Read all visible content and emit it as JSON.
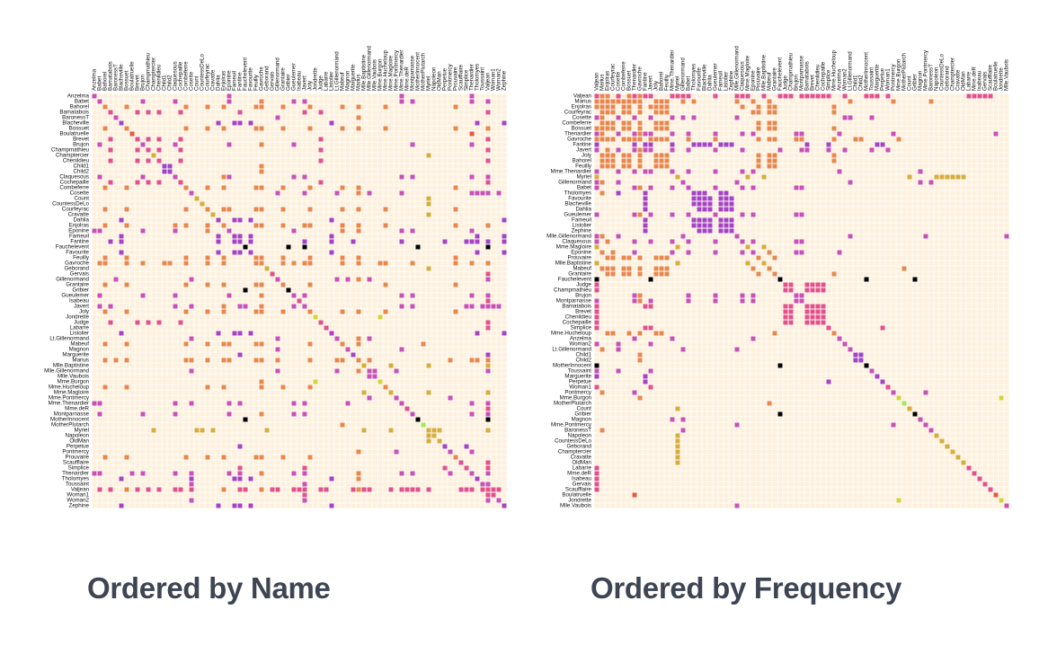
{
  "captions": {
    "left": "Ordered by Name",
    "right": "Ordered by Frequency"
  },
  "colors": {
    "background": "#fdf0dc",
    "grid": "#ffffff",
    "groups": {
      "0": "#000000",
      "1": "#d5ad3d",
      "2": "#e2518a",
      "3": "#a543c3",
      "4": "#c751b5",
      "5": "#c752b4",
      "6": "#e4593b",
      "7": "#d4d43a",
      "8": "#e8874d",
      "9": "#a3e85c",
      "10": "#9e46c2"
    }
  },
  "chart_data": [
    {
      "type": "heatmap",
      "title": "Ordered by Name",
      "rows": [
        "Anzelma",
        "Babet",
        "Bahorel",
        "Bamatabois",
        "BaronessT",
        "Blacheville",
        "Bossuet",
        "Boulatruelle",
        "Brevet",
        "Brujon",
        "Champmathieu",
        "Champtercier",
        "Chenildieu",
        "Child1",
        "Child2",
        "Claquesous",
        "Cochepaille",
        "Combeferre",
        "Cosette",
        "Count",
        "CountessDeLo",
        "Courfeyrac",
        "Cravatte",
        "Dahlia",
        "Enjolras",
        "Eponine",
        "Fameuil",
        "Fantine",
        "Fauchelevent",
        "Favourite",
        "Feuilly",
        "Gavroche",
        "Geborand",
        "Gervais",
        "Gillenormand",
        "Grantaire",
        "Gribier",
        "Gueulemer",
        "Isabeau",
        "Javert",
        "Joly",
        "Jondrette",
        "Judge",
        "Labarre",
        "Listolier",
        "Lt.Gillenormand",
        "Mabeuf",
        "Magnon",
        "Marguerite",
        "Marius",
        "Mlle.Baptistine",
        "Mlle.Gillenormand",
        "Mlle.Vaubois",
        "Mme.Burgon",
        "Mme.Hucheloup",
        "Mme.Magloire",
        "Mme.Pontmercy",
        "Mme.Thenardier",
        "Mme.deR",
        "Montparnasse",
        "MotherInnocent",
        "MotherPlutarch",
        "Myriel",
        "Napoleon",
        "OldMan",
        "Perpetue",
        "Pontmercy",
        "Prouvaire",
        "Scaufflaire",
        "Simplice",
        "Thenardier",
        "Tholomyes",
        "Toussaint",
        "Valjean",
        "Woman1",
        "Woman2",
        "Zephine"
      ]
    },
    {
      "type": "heatmap",
      "title": "Ordered by Frequency",
      "rows": [
        "Valjean",
        "Marius",
        "Enjolras",
        "Courfeyrac",
        "Cosette",
        "Combeferre",
        "Bossuet",
        "Thenardier",
        "Gavroche",
        "Fantine",
        "Javert",
        "Joly",
        "Bahorel",
        "Feuilly",
        "Mme.Thenardier",
        "Myriel",
        "Gillenormand",
        "Babet",
        "Tholomyes",
        "Favourite",
        "Blacheville",
        "Dahlia",
        "Gueulemer",
        "Fameuil",
        "Listolier",
        "Zephine",
        "Mlle.Gillenormand",
        "Claquesous",
        "Mme.Magloire",
        "Eponine",
        "Prouvaire",
        "Mlle.Baptistine",
        "Mabeuf",
        "Grantaire",
        "Fauchelevent",
        "Judge",
        "Champmathieu",
        "Brujon",
        "Montparnasse",
        "Bamatabois",
        "Brevet",
        "Chenildieu",
        "Cochepaille",
        "Simplice",
        "Mme.Hucheloup",
        "Anzelma",
        "Woman2",
        "Lt.Gillenormand",
        "Child1",
        "Child2",
        "MotherInnocent",
        "Toussaint",
        "Marguerite",
        "Perpetue",
        "Woman1",
        "Pontmercy",
        "Mme.Burgon",
        "MotherPlutarch",
        "Count",
        "Gribier",
        "Magnon",
        "Mme.Pontmercy",
        "BaronessT",
        "Napoleon",
        "CountessDeLo",
        "Geborand",
        "Champtercier",
        "Cravatte",
        "OldMan",
        "Labarre",
        "Mme.deR",
        "Isabeau",
        "Gervais",
        "Scaufflaire",
        "Boulatruelle",
        "Jondrette",
        "Mlle.Vaubois"
      ]
    }
  ],
  "groups": {
    "Myriel": 1,
    "Napoleon": 1,
    "Mlle.Baptistine": 1,
    "Mme.Magloire": 1,
    "CountessDeLo": 1,
    "Geborand": 1,
    "Champtercier": 1,
    "Cravatte": 1,
    "Count": 1,
    "OldMan": 1,
    "Labarre": 2,
    "Valjean": 2,
    "Marguerite": 3,
    "Mme.deR": 2,
    "Isabeau": 2,
    "Gervais": 2,
    "Tholomyes": 3,
    "Listolier": 3,
    "Fameuil": 3,
    "Blacheville": 3,
    "Favourite": 3,
    "Dahlia": 3,
    "Zephine": 3,
    "Fantine": 3,
    "Mme.Thenardier": 4,
    "Thenardier": 4,
    "Cosette": 5,
    "Javert": 4,
    "Fauchelevent": 0,
    "Bamatabois": 2,
    "Perpetue": 3,
    "Simplice": 2,
    "Scaufflaire": 2,
    "Woman1": 2,
    "Judge": 2,
    "Champmathieu": 2,
    "Brevet": 2,
    "Chenildieu": 2,
    "Cochepaille": 2,
    "Pontmercy": 4,
    "Boulatruelle": 6,
    "Eponine": 4,
    "Anzelma": 4,
    "Woman2": 5,
    "MotherInnocent": 0,
    "Gribier": 0,
    "Jondrette": 7,
    "Mme.Burgon": 7,
    "Gavroche": 8,
    "Gillenormand": 5,
    "Magnon": 5,
    "Mlle.Gillenormand": 5,
    "Mme.Pontmercy": 5,
    "Mlle.Vaubois": 5,
    "Lt.Gillenormand": 5,
    "Marius": 8,
    "BaronessT": 5,
    "Mabeuf": 8,
    "Enjolras": 8,
    "Combeferre": 8,
    "Prouvaire": 8,
    "Feuilly": 8,
    "Courfeyrac": 8,
    "Bahorel": 8,
    "Bossuet": 8,
    "Joly": 8,
    "Grantaire": 8,
    "MotherPlutarch": 9,
    "Gueulemer": 4,
    "Babet": 4,
    "Claquesous": 4,
    "Montparnasse": 4,
    "Toussaint": 5,
    "Child1": 10,
    "Child2": 10,
    "Brujon": 4,
    "Mme.Hucheloup": 8
  },
  "links": [
    [
      "Napoleon",
      "Myriel"
    ],
    [
      "Mlle.Baptistine",
      "Myriel"
    ],
    [
      "Mme.Magloire",
      "Myriel"
    ],
    [
      "Mme.Magloire",
      "Mlle.Baptistine"
    ],
    [
      "CountessDeLo",
      "Myriel"
    ],
    [
      "Geborand",
      "Myriel"
    ],
    [
      "Champtercier",
      "Myriel"
    ],
    [
      "Cravatte",
      "Myriel"
    ],
    [
      "Count",
      "Myriel"
    ],
    [
      "OldMan",
      "Myriel"
    ],
    [
      "Valjean",
      "Labarre"
    ],
    [
      "Valjean",
      "Mme.Magloire"
    ],
    [
      "Valjean",
      "Mlle.Baptistine"
    ],
    [
      "Valjean",
      "Myriel"
    ],
    [
      "Marguerite",
      "Valjean"
    ],
    [
      "Mme.deR",
      "Valjean"
    ],
    [
      "Isabeau",
      "Valjean"
    ],
    [
      "Gervais",
      "Valjean"
    ],
    [
      "Listolier",
      "Tholomyes"
    ],
    [
      "Fameuil",
      "Tholomyes"
    ],
    [
      "Fameuil",
      "Listolier"
    ],
    [
      "Blacheville",
      "Tholomyes"
    ],
    [
      "Blacheville",
      "Listolier"
    ],
    [
      "Blacheville",
      "Fameuil"
    ],
    [
      "Favourite",
      "Tholomyes"
    ],
    [
      "Favourite",
      "Listolier"
    ],
    [
      "Favourite",
      "Fameuil"
    ],
    [
      "Favourite",
      "Blacheville"
    ],
    [
      "Dahlia",
      "Listolier"
    ],
    [
      "Dahlia",
      "Fameuil"
    ],
    [
      "Dahlia",
      "Blacheville"
    ],
    [
      "Dahlia",
      "Favourite"
    ],
    [
      "Zephine",
      "Listolier"
    ],
    [
      "Zephine",
      "Fameuil"
    ],
    [
      "Zephine",
      "Blacheville"
    ],
    [
      "Zephine",
      "Favourite"
    ],
    [
      "Zephine",
      "Dahlia"
    ],
    [
      "Fantine",
      "Tholomyes"
    ],
    [
      "Fantine",
      "Listolier"
    ],
    [
      "Fantine",
      "Fameuil"
    ],
    [
      "Fantine",
      "Blacheville"
    ],
    [
      "Fantine",
      "Favourite"
    ],
    [
      "Fantine",
      "Dahlia"
    ],
    [
      "Fantine",
      "Zephine"
    ],
    [
      "Fantine",
      "Marguerite"
    ],
    [
      "Fantine",
      "Valjean"
    ],
    [
      "Mme.Thenardier",
      "Fantine"
    ],
    [
      "Mme.Thenardier",
      "Valjean"
    ],
    [
      "Thenardier",
      "Mme.Thenardier"
    ],
    [
      "Thenardier",
      "Fantine"
    ],
    [
      "Thenardier",
      "Valjean"
    ],
    [
      "Cosette",
      "Mme.Thenardier"
    ],
    [
      "Cosette",
      "Valjean"
    ],
    [
      "Cosette",
      "Tholomyes"
    ],
    [
      "Cosette",
      "Thenardier"
    ],
    [
      "Javert",
      "Valjean"
    ],
    [
      "Javert",
      "Fantine"
    ],
    [
      "Javert",
      "Thenardier"
    ],
    [
      "Javert",
      "Mme.Thenardier"
    ],
    [
      "Javert",
      "Cosette"
    ],
    [
      "Fauchelevent",
      "Valjean"
    ],
    [
      "Fauchelevent",
      "Javert"
    ],
    [
      "Bamatabois",
      "Fantine"
    ],
    [
      "Bamatabois",
      "Javert"
    ],
    [
      "Bamatabois",
      "Valjean"
    ],
    [
      "Perpetue",
      "Fantine"
    ],
    [
      "Simplice",
      "Perpetue"
    ],
    [
      "Simplice",
      "Valjean"
    ],
    [
      "Simplice",
      "Fantine"
    ],
    [
      "Simplice",
      "Javert"
    ],
    [
      "Scaufflaire",
      "Valjean"
    ],
    [
      "Woman1",
      "Valjean"
    ],
    [
      "Woman1",
      "Javert"
    ],
    [
      "Judge",
      "Valjean"
    ],
    [
      "Judge",
      "Bamatabois"
    ],
    [
      "Champmathieu",
      "Valjean"
    ],
    [
      "Champmathieu",
      "Judge"
    ],
    [
      "Champmathieu",
      "Bamatabois"
    ],
    [
      "Brevet",
      "Judge"
    ],
    [
      "Brevet",
      "Champmathieu"
    ],
    [
      "Brevet",
      "Valjean"
    ],
    [
      "Brevet",
      "Bamatabois"
    ],
    [
      "Chenildieu",
      "Judge"
    ],
    [
      "Chenildieu",
      "Champmathieu"
    ],
    [
      "Chenildieu",
      "Brevet"
    ],
    [
      "Chenildieu",
      "Valjean"
    ],
    [
      "Chenildieu",
      "Bamatabois"
    ],
    [
      "Cochepaille",
      "Judge"
    ],
    [
      "Cochepaille",
      "Champmathieu"
    ],
    [
      "Cochepaille",
      "Brevet"
    ],
    [
      "Cochepaille",
      "Chenildieu"
    ],
    [
      "Cochepaille",
      "Valjean"
    ],
    [
      "Cochepaille",
      "Bamatabois"
    ],
    [
      "Pontmercy",
      "Thenardier"
    ],
    [
      "Boulatruelle",
      "Thenardier"
    ],
    [
      "Eponine",
      "Mme.Thenardier"
    ],
    [
      "Eponine",
      "Thenardier"
    ],
    [
      "Anzelma",
      "Eponine"
    ],
    [
      "Anzelma",
      "Thenardier"
    ],
    [
      "Anzelma",
      "Mme.Thenardier"
    ],
    [
      "Woman2",
      "Valjean"
    ],
    [
      "Woman2",
      "Cosette"
    ],
    [
      "Woman2",
      "Javert"
    ],
    [
      "MotherInnocent",
      "Fauchelevent"
    ],
    [
      "MotherInnocent",
      "Valjean"
    ],
    [
      "Gribier",
      "Fauchelevent"
    ],
    [
      "Mme.Burgon",
      "Jondrette"
    ],
    [
      "Gavroche",
      "Mme.Burgon"
    ],
    [
      "Gavroche",
      "Thenardier"
    ],
    [
      "Gavroche",
      "Javert"
    ],
    [
      "Gavroche",
      "Valjean"
    ],
    [
      "Gillenormand",
      "Cosette"
    ],
    [
      "Gillenormand",
      "Valjean"
    ],
    [
      "Magnon",
      "Gillenormand"
    ],
    [
      "Magnon",
      "Mme.Thenardier"
    ],
    [
      "Mlle.Gillenormand",
      "Gillenormand"
    ],
    [
      "Mlle.Gillenormand",
      "Cosette"
    ],
    [
      "Mlle.Gillenormand",
      "Valjean"
    ],
    [
      "Mme.Pontmercy",
      "Mlle.Gillenormand"
    ],
    [
      "Mme.Pontmercy",
      "Pontmercy"
    ],
    [
      "Mlle.Vaubois",
      "Mlle.Gillenormand"
    ],
    [
      "Lt.Gillenormand",
      "Mlle.Gillenormand"
    ],
    [
      "Lt.Gillenormand",
      "Gillenormand"
    ],
    [
      "Lt.Gillenormand",
      "Cosette"
    ],
    [
      "Marius",
      "Mlle.Gillenormand"
    ],
    [
      "Marius",
      "Gillenormand"
    ],
    [
      "Marius",
      "Pontmercy"
    ],
    [
      "Marius",
      "Lt.Gillenormand"
    ],
    [
      "Marius",
      "Cosette"
    ],
    [
      "Marius",
      "Valjean"
    ],
    [
      "Marius",
      "Tholomyes"
    ],
    [
      "Marius",
      "Thenardier"
    ],
    [
      "Marius",
      "Eponine"
    ],
    [
      "Marius",
      "Gavroche"
    ],
    [
      "BaronessT",
      "Gillenormand"
    ],
    [
      "BaronessT",
      "Marius"
    ],
    [
      "Mabeuf",
      "Marius"
    ],
    [
      "Mabeuf",
      "Eponine"
    ],
    [
      "Mabeuf",
      "Gavroche"
    ],
    [
      "Enjolras",
      "Marius"
    ],
    [
      "Enjolras",
      "Gavroche"
    ],
    [
      "Enjolras",
      "Javert"
    ],
    [
      "Enjolras",
      "Mabeuf"
    ],
    [
      "Enjolras",
      "Valjean"
    ],
    [
      "Combeferre",
      "Enjolras"
    ],
    [
      "Combeferre",
      "Marius"
    ],
    [
      "Combeferre",
      "Gavroche"
    ],
    [
      "Combeferre",
      "Mabeuf"
    ],
    [
      "Prouvaire",
      "Gavroche"
    ],
    [
      "Prouvaire",
      "Enjolras"
    ],
    [
      "Prouvaire",
      "Combeferre"
    ],
    [
      "Feuilly",
      "Gavroche"
    ],
    [
      "Feuilly",
      "Enjolras"
    ],
    [
      "Feuilly",
      "Prouvaire"
    ],
    [
      "Feuilly",
      "Combeferre"
    ],
    [
      "Feuilly",
      "Mabeuf"
    ],
    [
      "Feuilly",
      "Marius"
    ],
    [
      "Courfeyrac",
      "Marius"
    ],
    [
      "Courfeyrac",
      "Enjolras"
    ],
    [
      "Courfeyrac",
      "Combeferre"
    ],
    [
      "Courfeyrac",
      "Gavroche"
    ],
    [
      "Courfeyrac",
      "Mabeuf"
    ],
    [
      "Courfeyrac",
      "Eponine"
    ],
    [
      "Courfeyrac",
      "Feuilly"
    ],
    [
      "Courfeyrac",
      "Prouvaire"
    ],
    [
      "Bahorel",
      "Combeferre"
    ],
    [
      "Bahorel",
      "Gavroche"
    ],
    [
      "Bahorel",
      "Courfeyrac"
    ],
    [
      "Bahorel",
      "Mabeuf"
    ],
    [
      "Bahorel",
      "Enjolras"
    ],
    [
      "Bahorel",
      "Feuilly"
    ],
    [
      "Bahorel",
      "Prouvaire"
    ],
    [
      "Bahorel",
      "Marius"
    ],
    [
      "Bossuet",
      "Marius"
    ],
    [
      "Bossuet",
      "Courfeyrac"
    ],
    [
      "Bossuet",
      "Gavroche"
    ],
    [
      "Bossuet",
      "Bahorel"
    ],
    [
      "Bossuet",
      "Enjolras"
    ],
    [
      "Bossuet",
      "Feuilly"
    ],
    [
      "Bossuet",
      "Prouvaire"
    ],
    [
      "Bossuet",
      "Combeferre"
    ],
    [
      "Bossuet",
      "Mabeuf"
    ],
    [
      "Bossuet",
      "Valjean"
    ],
    [
      "Joly",
      "Bahorel"
    ],
    [
      "Joly",
      "Bossuet"
    ],
    [
      "Joly",
      "Gavroche"
    ],
    [
      "Joly",
      "Courfeyrac"
    ],
    [
      "Joly",
      "Enjolras"
    ],
    [
      "Joly",
      "Feuilly"
    ],
    [
      "Joly",
      "Prouvaire"
    ],
    [
      "Joly",
      "Combeferre"
    ],
    [
      "Joly",
      "Mabeuf"
    ],
    [
      "Joly",
      "Marius"
    ],
    [
      "Grantaire",
      "Bossuet"
    ],
    [
      "Grantaire",
      "Enjolras"
    ],
    [
      "Grantaire",
      "Combeferre"
    ],
    [
      "Grantaire",
      "Courfeyrac"
    ],
    [
      "Grantaire",
      "Joly"
    ],
    [
      "Grantaire",
      "Gavroche"
    ],
    [
      "Grantaire",
      "Bahorel"
    ],
    [
      "Grantaire",
      "Feuilly"
    ],
    [
      "Grantaire",
      "Prouvaire"
    ],
    [
      "MotherPlutarch",
      "Mabeuf"
    ],
    [
      "Gueulemer",
      "Thenardier"
    ],
    [
      "Gueulemer",
      "Valjean"
    ],
    [
      "Gueulemer",
      "Mme.Thenardier"
    ],
    [
      "Gueulemer",
      "Javert"
    ],
    [
      "Gueulemer",
      "Gavroche"
    ],
    [
      "Gueulemer",
      "Eponine"
    ],
    [
      "Babet",
      "Thenardier"
    ],
    [
      "Babet",
      "Gueulemer"
    ],
    [
      "Babet",
      "Valjean"
    ],
    [
      "Babet",
      "Mme.Thenardier"
    ],
    [
      "Babet",
      "Javert"
    ],
    [
      "Babet",
      "Gavroche"
    ],
    [
      "Babet",
      "Eponine"
    ],
    [
      "Claquesous",
      "Thenardier"
    ],
    [
      "Claquesous",
      "Babet"
    ],
    [
      "Claquesous",
      "Gueulemer"
    ],
    [
      "Claquesous",
      "Valjean"
    ],
    [
      "Claquesous",
      "Mme.Thenardier"
    ],
    [
      "Claquesous",
      "Javert"
    ],
    [
      "Claquesous",
      "Eponine"
    ],
    [
      "Claquesous",
      "Enjolras"
    ],
    [
      "Montparnasse",
      "Javert"
    ],
    [
      "Montparnasse",
      "Babet"
    ],
    [
      "Montparnasse",
      "Gueulemer"
    ],
    [
      "Montparnasse",
      "Claquesous"
    ],
    [
      "Montparnasse",
      "Valjean"
    ],
    [
      "Montparnasse",
      "Gavroche"
    ],
    [
      "Montparnasse",
      "Eponine"
    ],
    [
      "Montparnasse",
      "Thenardier"
    ],
    [
      "Toussaint",
      "Cosette"
    ],
    [
      "Toussaint",
      "Javert"
    ],
    [
      "Toussaint",
      "Valjean"
    ],
    [
      "Child1",
      "Gavroche"
    ],
    [
      "Child2",
      "Gavroche"
    ],
    [
      "Child2",
      "Child1"
    ],
    [
      "Brujon",
      "Babet"
    ],
    [
      "Brujon",
      "Gueulemer"
    ],
    [
      "Brujon",
      "Thenardier"
    ],
    [
      "Brujon",
      "Gavroche"
    ],
    [
      "Brujon",
      "Eponine"
    ],
    [
      "Brujon",
      "Claquesous"
    ],
    [
      "Brujon",
      "Montparnasse"
    ],
    [
      "Mme.Hucheloup",
      "Bossuet"
    ],
    [
      "Mme.Hucheloup",
      "Joly"
    ],
    [
      "Mme.Hucheloup",
      "Grantaire"
    ],
    [
      "Mme.Hucheloup",
      "Bahorel"
    ],
    [
      "Mme.Hucheloup",
      "Courfeyrac"
    ],
    [
      "Mme.Hucheloup",
      "Gavroche"
    ],
    [
      "Mme.Hucheloup",
      "Enjolras"
    ]
  ]
}
